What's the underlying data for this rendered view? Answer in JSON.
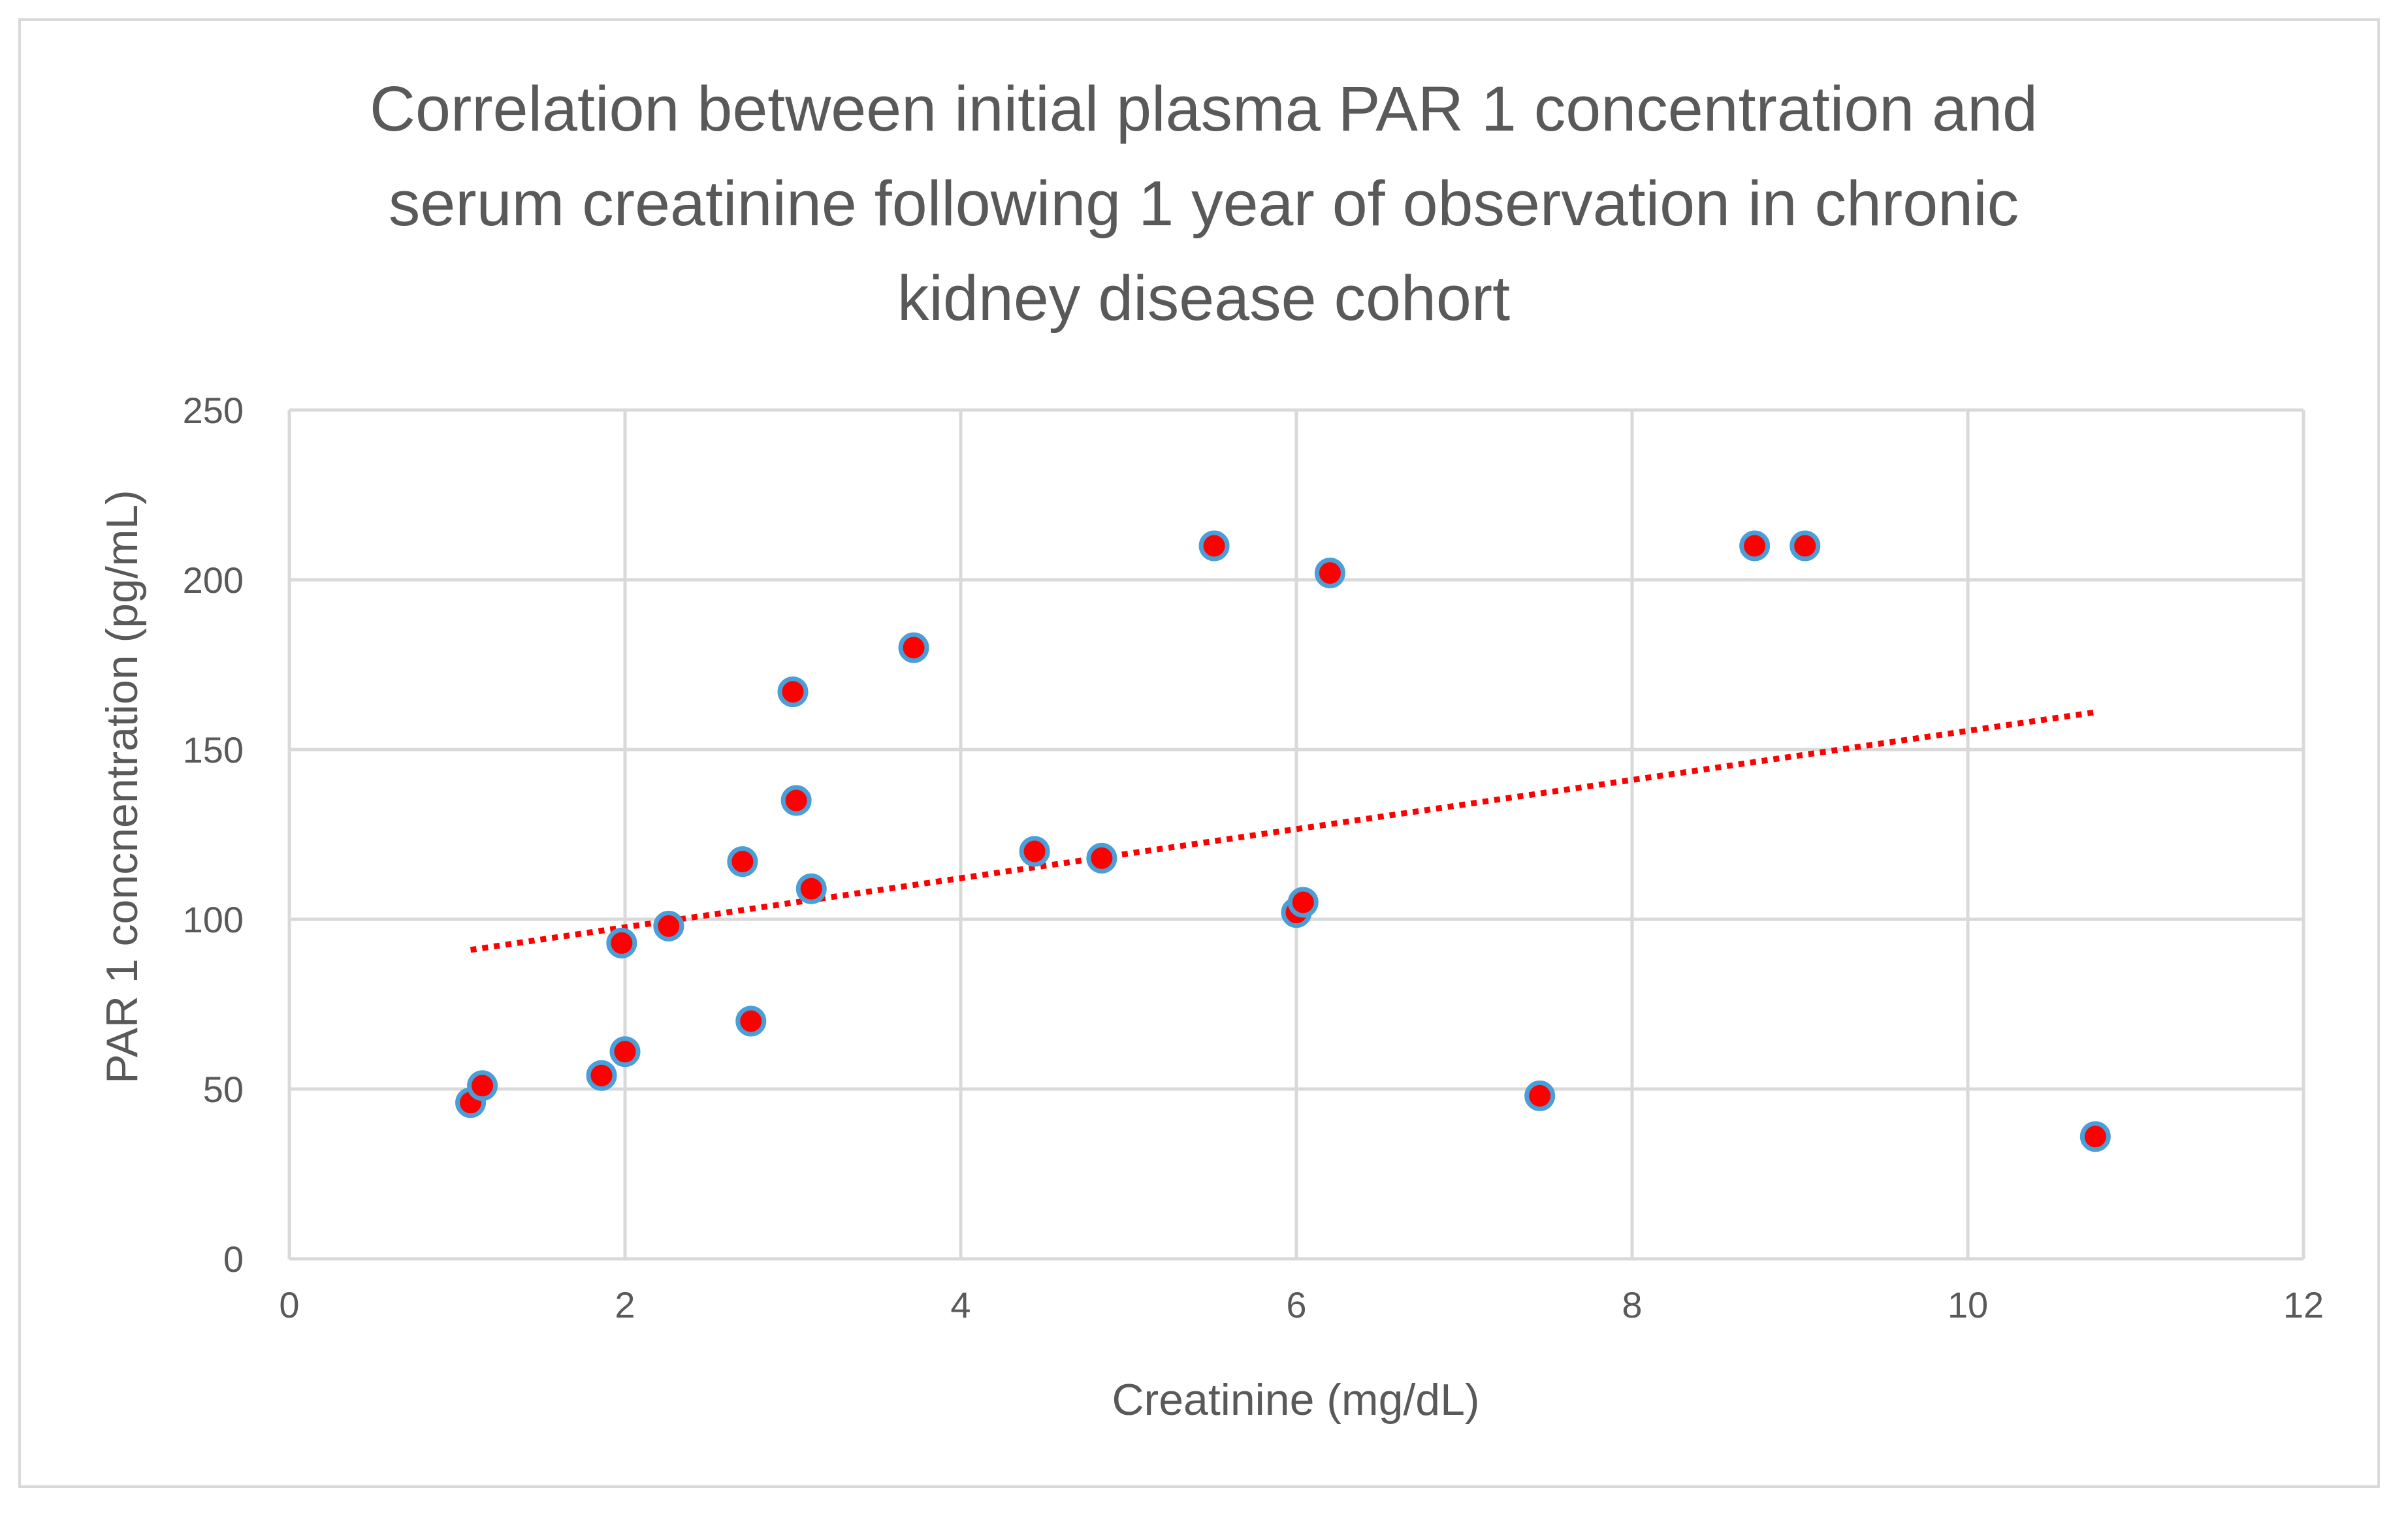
{
  "chart_data": {
    "type": "scatter",
    "title_lines": [
      "Correlation between initial plasma PAR 1 concentration and",
      "serum creatinine following 1 year of observation in chronic",
      "kidney disease cohort"
    ],
    "xlabel": "Creatinine (mg/dL)",
    "ylabel": "PAR 1 concnentration (pg/mL)",
    "xlim": [
      0,
      12
    ],
    "ylim": [
      0,
      250
    ],
    "xticks": [
      0,
      2,
      4,
      6,
      8,
      10,
      12
    ],
    "yticks": [
      0,
      50,
      100,
      150,
      200,
      250
    ],
    "grid": true,
    "series": [
      {
        "name": "PAR 1",
        "marker_fill": "#ff0000",
        "marker_edge": "#4a9fd8",
        "points": [
          [
            1.08,
            46
          ],
          [
            1.15,
            51
          ],
          [
            1.86,
            54
          ],
          [
            1.98,
            93
          ],
          [
            2.0,
            61
          ],
          [
            2.26,
            98
          ],
          [
            2.7,
            117
          ],
          [
            2.75,
            70
          ],
          [
            3.0,
            167
          ],
          [
            3.02,
            135
          ],
          [
            3.11,
            109
          ],
          [
            3.72,
            180
          ],
          [
            4.44,
            120
          ],
          [
            4.84,
            118
          ],
          [
            5.51,
            210
          ],
          [
            6.0,
            102
          ],
          [
            6.04,
            105
          ],
          [
            6.2,
            202
          ],
          [
            7.45,
            48
          ],
          [
            8.73,
            210
          ],
          [
            9.03,
            210
          ],
          [
            10.76,
            36
          ]
        ]
      }
    ],
    "trendline": {
      "type": "linear",
      "style": "dotted",
      "color": "#ff0000",
      "x_range": [
        1.08,
        10.76
      ],
      "y_range": [
        91,
        161
      ]
    }
  }
}
